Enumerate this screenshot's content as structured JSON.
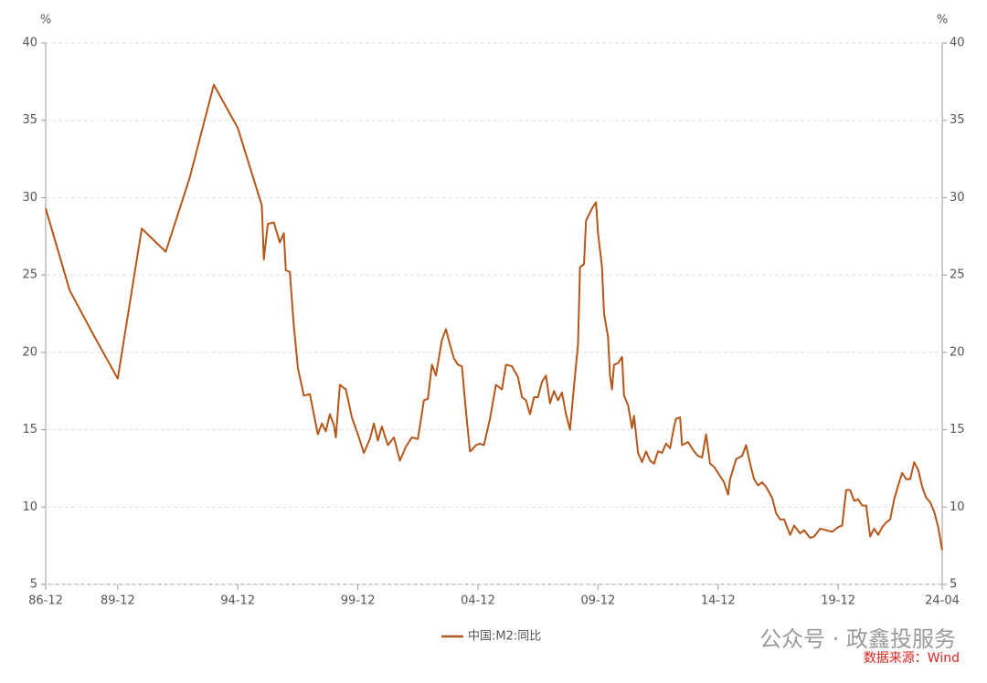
{
  "chart_data": {
    "type": "line",
    "y_unit": "%",
    "x": [
      "86-12",
      "87-12",
      "88-12",
      "89-12",
      "90-12",
      "91-12",
      "92-12",
      "93-12",
      "94-12",
      "95-12",
      "96-01",
      "96-03",
      "96-06",
      "96-09",
      "96-11",
      "96-12",
      "97-02",
      "97-04",
      "97-06",
      "97-09",
      "97-12",
      "98-02",
      "98-04",
      "98-06",
      "98-08",
      "98-10",
      "98-12",
      "99-01",
      "99-03",
      "99-06",
      "99-09",
      "99-12",
      "00-03",
      "00-06",
      "00-08",
      "00-10",
      "00-12",
      "01-03",
      "01-06",
      "01-09",
      "01-12",
      "02-03",
      "02-06",
      "02-09",
      "02-11",
      "03-01",
      "03-03",
      "03-06",
      "03-08",
      "03-10",
      "03-12",
      "04-02",
      "04-04",
      "04-06",
      "04-08",
      "04-09",
      "04-11",
      "05-01",
      "05-03",
      "05-06",
      "05-09",
      "05-12",
      "06-02",
      "06-05",
      "06-08",
      "06-10",
      "06-12",
      "07-02",
      "07-04",
      "07-06",
      "07-08",
      "07-10",
      "07-12",
      "08-02",
      "08-04",
      "08-06",
      "08-08",
      "08-10",
      "08-12",
      "09-02",
      "09-03",
      "09-05",
      "09-06",
      "09-09",
      "09-11",
      "09-12",
      "10-02",
      "10-03",
      "10-05",
      "10-06",
      "10-07",
      "10-08",
      "10-10",
      "10-11",
      "10-12",
      "11-01",
      "11-03",
      "11-05",
      "11-06",
      "11-08",
      "11-10",
      "11-12",
      "12-02",
      "12-04",
      "12-06",
      "12-08",
      "12-10",
      "12-12",
      "13-02",
      "13-03",
      "13-05",
      "13-06",
      "13-09",
      "13-12",
      "14-02",
      "14-04",
      "14-06",
      "14-08",
      "14-10",
      "14-12",
      "15-03",
      "15-05",
      "15-06",
      "15-09",
      "15-12",
      "16-02",
      "16-04",
      "16-06",
      "16-08",
      "16-10",
      "16-12",
      "17-03",
      "17-05",
      "17-07",
      "17-09",
      "17-12",
      "18-02",
      "18-05",
      "18-07",
      "18-10",
      "18-12",
      "19-03",
      "19-06",
      "19-09",
      "19-12",
      "20-02",
      "20-04",
      "20-06",
      "20-08",
      "20-10",
      "20-12",
      "21-02",
      "21-04",
      "21-06",
      "21-08",
      "21-10",
      "21-12",
      "22-02",
      "22-04",
      "22-06",
      "22-08",
      "22-10",
      "22-12",
      "23-02",
      "23-04",
      "23-06",
      "23-08",
      "23-10",
      "23-12",
      "24-02",
      "24-04"
    ],
    "series": [
      {
        "name": "中国:M2:同比",
        "color": "#b5561a",
        "values": [
          29.3,
          24.0,
          21.1,
          18.3,
          28.0,
          26.5,
          31.3,
          37.3,
          34.5,
          29.5,
          26.0,
          28.3,
          28.4,
          27.1,
          27.7,
          25.3,
          25.2,
          21.7,
          19.0,
          17.2,
          17.3,
          16.0,
          14.7,
          15.4,
          14.9,
          16.0,
          15.3,
          14.5,
          17.9,
          17.6,
          15.8,
          14.7,
          13.5,
          14.4,
          15.4,
          14.3,
          15.2,
          14.0,
          14.5,
          13.0,
          13.9,
          14.5,
          14.4,
          16.9,
          17.0,
          19.2,
          18.5,
          20.8,
          21.5,
          20.5,
          19.6,
          19.2,
          19.1,
          16.2,
          13.6,
          13.7,
          14.0,
          14.1,
          14.0,
          15.7,
          17.9,
          17.6,
          19.2,
          19.1,
          18.4,
          17.1,
          16.9,
          16.0,
          17.1,
          17.1,
          18.1,
          18.5,
          16.7,
          17.5,
          16.9,
          17.4,
          16.0,
          15.0,
          17.8,
          20.5,
          25.5,
          25.7,
          28.5,
          29.3,
          29.7,
          27.7,
          25.5,
          22.5,
          21.0,
          18.5,
          17.6,
          19.2,
          19.3,
          19.5,
          19.7,
          17.2,
          16.6,
          15.1,
          15.9,
          13.5,
          12.9,
          13.6,
          13.0,
          12.8,
          13.6,
          13.5,
          14.1,
          13.8,
          15.2,
          15.7,
          15.8,
          14.0,
          14.2,
          13.6,
          13.3,
          13.2,
          14.7,
          12.8,
          12.6,
          12.2,
          11.6,
          10.8,
          11.8,
          13.1,
          13.3,
          14.0,
          12.8,
          11.8,
          11.4,
          11.6,
          11.3,
          10.6,
          9.6,
          9.2,
          9.2,
          8.2,
          8.8,
          8.3,
          8.5,
          8.0,
          8.1,
          8.6,
          8.5,
          8.4,
          8.7,
          8.8,
          11.1,
          11.1,
          10.4,
          10.5,
          10.1,
          10.1,
          8.1,
          8.6,
          8.2,
          8.7,
          9.0,
          9.2,
          10.5,
          11.4,
          12.2,
          11.8,
          11.8,
          12.9,
          12.4,
          11.3,
          10.6,
          10.3,
          9.7,
          8.7,
          7.2
        ]
      }
    ],
    "xlim": [
      "86-12",
      "24-04"
    ],
    "xticks": [
      "86-12",
      "89-12",
      "94-12",
      "99-12",
      "04-12",
      "09-12",
      "14-12",
      "19-12",
      "24-04"
    ],
    "ylim": [
      5,
      40
    ],
    "yticks": [
      5,
      10,
      15,
      20,
      25,
      30,
      35,
      40
    ],
    "grid": true,
    "legend": "bottom",
    "watermark": "公众号 · 政鑫投服务",
    "source": "数据来源：Wind"
  }
}
